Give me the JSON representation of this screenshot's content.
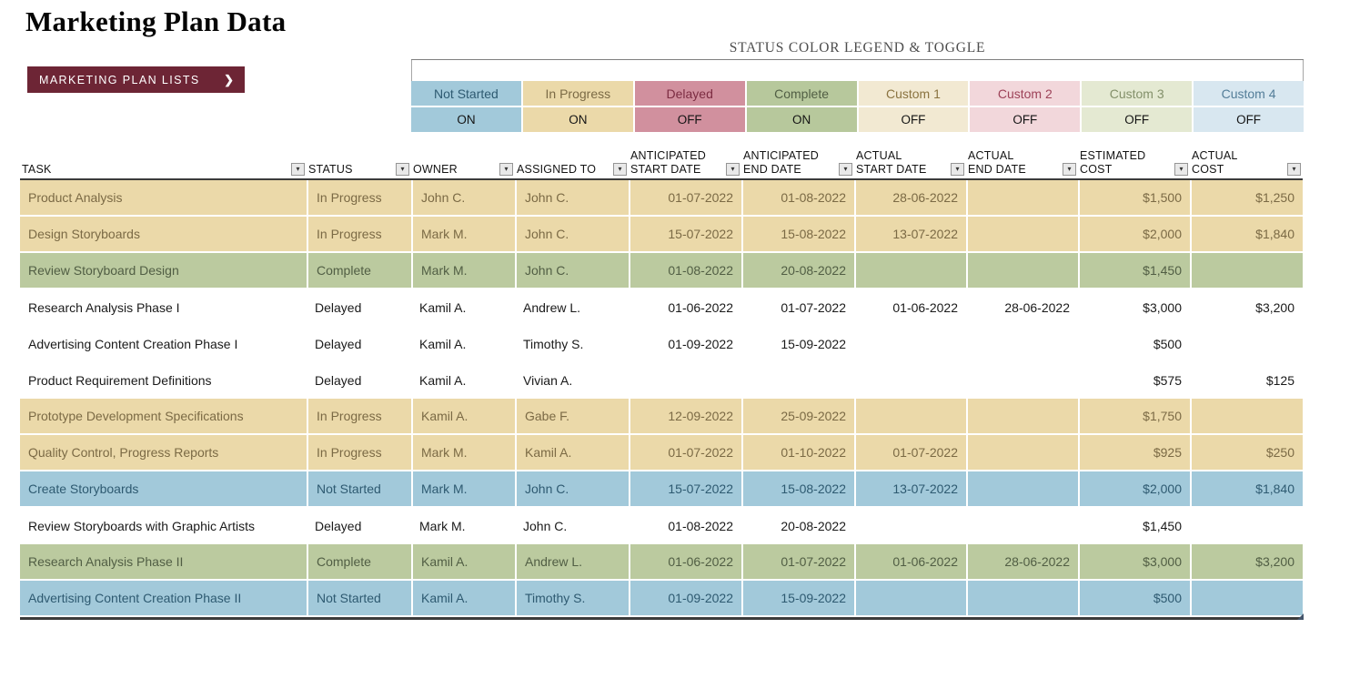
{
  "page": {
    "title": "Marketing Plan Data"
  },
  "nav_button": {
    "label": "MARKETING PLAN LISTS",
    "arrow": "❯"
  },
  "legend": {
    "title": "STATUS COLOR LEGEND & TOGGLE",
    "items": [
      {
        "label": "Not Started",
        "state": "ON",
        "bg": "#A2C9DA",
        "fg": "#2E5A71"
      },
      {
        "label": "In Progress",
        "state": "ON",
        "bg": "#EBD9A9",
        "fg": "#7B6A45"
      },
      {
        "label": "Delayed",
        "state": "OFF",
        "bg": "#D1909E",
        "fg": "#7C2C42"
      },
      {
        "label": "Complete",
        "state": "ON",
        "bg": "#B7C89C",
        "fg": "#515E44"
      },
      {
        "label": "Custom 1",
        "state": "OFF",
        "bg": "#F2E9D2",
        "fg": "#8A7340"
      },
      {
        "label": "Custom 2",
        "state": "OFF",
        "bg": "#F2D7DB",
        "fg": "#9D4258"
      },
      {
        "label": "Custom 3",
        "state": "OFF",
        "bg": "#E4E9D2",
        "fg": "#83906A"
      },
      {
        "label": "Custom 4",
        "state": "OFF",
        "bg": "#D8E7F0",
        "fg": "#537D98"
      }
    ]
  },
  "status_styles": {
    "In Progress": {
      "bg": "#EBD9A9",
      "fg": "#7B6A45"
    },
    "Complete": {
      "bg": "#BBCA9F",
      "fg": "#515E44"
    },
    "Not Started": {
      "bg": "#A2C9DA",
      "fg": "#2E5A71"
    },
    "Delayed": {
      "bg": "",
      "fg": "#1A1A1A"
    }
  },
  "table": {
    "columns": [
      {
        "key": "task",
        "lines": [
          "TASK"
        ],
        "align": "left"
      },
      {
        "key": "status",
        "lines": [
          "STATUS"
        ],
        "align": "left"
      },
      {
        "key": "owner",
        "lines": [
          "OWNER"
        ],
        "align": "left"
      },
      {
        "key": "assigned_to",
        "lines": [
          "ASSIGNED TO"
        ],
        "align": "left"
      },
      {
        "key": "anticipated_start_date",
        "lines": [
          "ANTICIPATED",
          "START DATE"
        ],
        "align": "right"
      },
      {
        "key": "anticipated_end_date",
        "lines": [
          "ANTICIPATED",
          "END DATE"
        ],
        "align": "right"
      },
      {
        "key": "actual_start_date",
        "lines": [
          "ACTUAL",
          "START DATE"
        ],
        "align": "right"
      },
      {
        "key": "actual_end_date",
        "lines": [
          "ACTUAL",
          "END DATE"
        ],
        "align": "right"
      },
      {
        "key": "estimated_cost",
        "lines": [
          "ESTIMATED",
          "COST"
        ],
        "align": "right"
      },
      {
        "key": "actual_cost",
        "lines": [
          "ACTUAL",
          "COST"
        ],
        "align": "right"
      }
    ],
    "rows": [
      {
        "task": "Product Analysis",
        "status": "In Progress",
        "owner": "John C.",
        "assigned_to": "John C.",
        "anticipated_start_date": "01-07-2022",
        "anticipated_end_date": "01-08-2022",
        "actual_start_date": "28-06-2022",
        "actual_end_date": "",
        "estimated_cost": "$1,500",
        "actual_cost": "$1,250"
      },
      {
        "task": "Design Storyboards",
        "status": "In Progress",
        "owner": "Mark M.",
        "assigned_to": "John C.",
        "anticipated_start_date": "15-07-2022",
        "anticipated_end_date": "15-08-2022",
        "actual_start_date": "13-07-2022",
        "actual_end_date": "",
        "estimated_cost": "$2,000",
        "actual_cost": "$1,840"
      },
      {
        "task": "Review Storyboard Design",
        "status": "Complete",
        "owner": "Mark M.",
        "assigned_to": "John C.",
        "anticipated_start_date": "01-08-2022",
        "anticipated_end_date": "20-08-2022",
        "actual_start_date": "",
        "actual_end_date": "",
        "estimated_cost": "$1,450",
        "actual_cost": ""
      },
      {
        "task": "Research Analysis Phase I",
        "status": "Delayed",
        "owner": "Kamil A.",
        "assigned_to": "Andrew L.",
        "anticipated_start_date": "01-06-2022",
        "anticipated_end_date": "01-07-2022",
        "actual_start_date": "01-06-2022",
        "actual_end_date": "28-06-2022",
        "estimated_cost": "$3,000",
        "actual_cost": "$3,200"
      },
      {
        "task": "Advertising Content Creation Phase I",
        "status": "Delayed",
        "owner": "Kamil A.",
        "assigned_to": "Timothy S.",
        "anticipated_start_date": "01-09-2022",
        "anticipated_end_date": "15-09-2022",
        "actual_start_date": "",
        "actual_end_date": "",
        "estimated_cost": "$500",
        "actual_cost": ""
      },
      {
        "task": "Product Requirement Definitions",
        "status": "Delayed",
        "owner": "Kamil A.",
        "assigned_to": "Vivian A.",
        "anticipated_start_date": "",
        "anticipated_end_date": "",
        "actual_start_date": "",
        "actual_end_date": "",
        "estimated_cost": "$575",
        "actual_cost": "$125"
      },
      {
        "task": "Prototype Development Specifications",
        "status": "In Progress",
        "owner": "Kamil A.",
        "assigned_to": "Gabe F.",
        "anticipated_start_date": "12-09-2022",
        "anticipated_end_date": "25-09-2022",
        "actual_start_date": "",
        "actual_end_date": "",
        "estimated_cost": "$1,750",
        "actual_cost": ""
      },
      {
        "task": "Quality Control, Progress Reports",
        "status": "In Progress",
        "owner": "Mark M.",
        "assigned_to": "Kamil A.",
        "anticipated_start_date": "01-07-2022",
        "anticipated_end_date": "01-10-2022",
        "actual_start_date": "01-07-2022",
        "actual_end_date": "",
        "estimated_cost": "$925",
        "actual_cost": "$250"
      },
      {
        "task": "Create Storyboards",
        "status": "Not Started",
        "owner": "Mark M.",
        "assigned_to": "John C.",
        "anticipated_start_date": "15-07-2022",
        "anticipated_end_date": "15-08-2022",
        "actual_start_date": "13-07-2022",
        "actual_end_date": "",
        "estimated_cost": "$2,000",
        "actual_cost": "$1,840"
      },
      {
        "task": "Review Storyboards with Graphic Artists",
        "status": "Delayed",
        "owner": "Mark M.",
        "assigned_to": "John C.",
        "anticipated_start_date": "01-08-2022",
        "anticipated_end_date": "20-08-2022",
        "actual_start_date": "",
        "actual_end_date": "",
        "estimated_cost": "$1,450",
        "actual_cost": ""
      },
      {
        "task": "Research Analysis Phase II",
        "status": "Complete",
        "owner": "Kamil A.",
        "assigned_to": "Andrew L.",
        "anticipated_start_date": "01-06-2022",
        "anticipated_end_date": "01-07-2022",
        "actual_start_date": "01-06-2022",
        "actual_end_date": "28-06-2022",
        "estimated_cost": "$3,000",
        "actual_cost": "$3,200"
      },
      {
        "task": "Advertising Content Creation Phase II",
        "status": "Not Started",
        "owner": "Kamil A.",
        "assigned_to": "Timothy S.",
        "anticipated_start_date": "01-09-2022",
        "anticipated_end_date": "15-09-2022",
        "actual_start_date": "",
        "actual_end_date": "",
        "estimated_cost": "$500",
        "actual_cost": ""
      }
    ]
  }
}
